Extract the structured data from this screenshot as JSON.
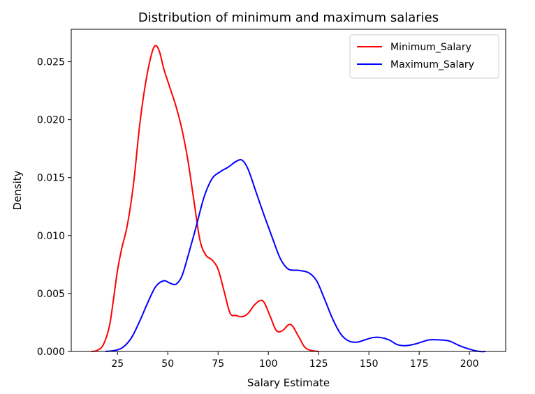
{
  "chart_data": {
    "type": "line",
    "title": "Distribution of minimum and maximum salaries",
    "xlabel": "Salary Estimate",
    "ylabel": "Density",
    "xlim": [
      2,
      218
    ],
    "ylim": [
      0,
      0.0278
    ],
    "x_ticks": [
      25,
      50,
      75,
      100,
      125,
      150,
      175,
      200
    ],
    "x_tick_labels": [
      "25",
      "50",
      "75",
      "100",
      "125",
      "150",
      "175",
      "200"
    ],
    "y_ticks": [
      0,
      0.005,
      0.01,
      0.015,
      0.02,
      0.025
    ],
    "y_tick_labels": [
      "0.000",
      "0.005",
      "0.010",
      "0.015",
      "0.020",
      "0.025"
    ],
    "grid": false,
    "legend_position": "top-right",
    "series": [
      {
        "name": "Minimum_Salary",
        "color": "#ff0000",
        "points": [
          [
            12,
            0.0
          ],
          [
            15,
            0.0001
          ],
          [
            18,
            0.0006
          ],
          [
            21,
            0.0022
          ],
          [
            23,
            0.0045
          ],
          [
            25,
            0.007
          ],
          [
            27,
            0.0088
          ],
          [
            30,
            0.011
          ],
          [
            33,
            0.0145
          ],
          [
            36,
            0.0195
          ],
          [
            39,
            0.0232
          ],
          [
            42,
            0.0257
          ],
          [
            44,
            0.0264
          ],
          [
            46,
            0.0258
          ],
          [
            48,
            0.0244
          ],
          [
            51,
            0.0228
          ],
          [
            54,
            0.0212
          ],
          [
            57,
            0.0192
          ],
          [
            60,
            0.0165
          ],
          [
            63,
            0.013
          ],
          [
            66,
            0.0096
          ],
          [
            69,
            0.0083
          ],
          [
            72,
            0.0079
          ],
          [
            75,
            0.0071
          ],
          [
            78,
            0.0052
          ],
          [
            81,
            0.0033
          ],
          [
            84,
            0.0031
          ],
          [
            87,
            0.003
          ],
          [
            90,
            0.0033
          ],
          [
            93,
            0.004
          ],
          [
            96,
            0.0044
          ],
          [
            98,
            0.0042
          ],
          [
            101,
            0.003
          ],
          [
            104,
            0.0018
          ],
          [
            107,
            0.0018
          ],
          [
            110,
            0.0023
          ],
          [
            112,
            0.0022
          ],
          [
            115,
            0.0013
          ],
          [
            118,
            0.0004
          ],
          [
            121,
            0.0001
          ],
          [
            125,
            0.0
          ]
        ]
      },
      {
        "name": "Maximum_Salary",
        "color": "#0000ff",
        "points": [
          [
            19,
            0.0
          ],
          [
            24,
            0.0001
          ],
          [
            28,
            0.0004
          ],
          [
            32,
            0.0012
          ],
          [
            36,
            0.0026
          ],
          [
            40,
            0.0042
          ],
          [
            44,
            0.0056
          ],
          [
            48,
            0.0061
          ],
          [
            51,
            0.0059
          ],
          [
            54,
            0.0058
          ],
          [
            57,
            0.0065
          ],
          [
            60,
            0.0082
          ],
          [
            64,
            0.0107
          ],
          [
            68,
            0.0133
          ],
          [
            72,
            0.0149
          ],
          [
            76,
            0.0155
          ],
          [
            80,
            0.0159
          ],
          [
            84,
            0.0164
          ],
          [
            87,
            0.0165
          ],
          [
            90,
            0.0157
          ],
          [
            94,
            0.0137
          ],
          [
            98,
            0.0117
          ],
          [
            102,
            0.0098
          ],
          [
            106,
            0.008
          ],
          [
            110,
            0.0071
          ],
          [
            115,
            0.007
          ],
          [
            120,
            0.0068
          ],
          [
            124,
            0.0061
          ],
          [
            128,
            0.0045
          ],
          [
            132,
            0.0028
          ],
          [
            136,
            0.0015
          ],
          [
            140,
            0.0009
          ],
          [
            144,
            0.0008
          ],
          [
            148,
            0.001
          ],
          [
            152,
            0.0012
          ],
          [
            156,
            0.0012
          ],
          [
            160,
            0.001
          ],
          [
            164,
            0.0006
          ],
          [
            168,
            0.0005
          ],
          [
            172,
            0.0006
          ],
          [
            176,
            0.0008
          ],
          [
            180,
            0.001
          ],
          [
            185,
            0.001
          ],
          [
            190,
            0.0009
          ],
          [
            195,
            0.0005
          ],
          [
            200,
            0.0002
          ],
          [
            205,
            0.0
          ],
          [
            208,
            0.0
          ]
        ]
      }
    ]
  }
}
